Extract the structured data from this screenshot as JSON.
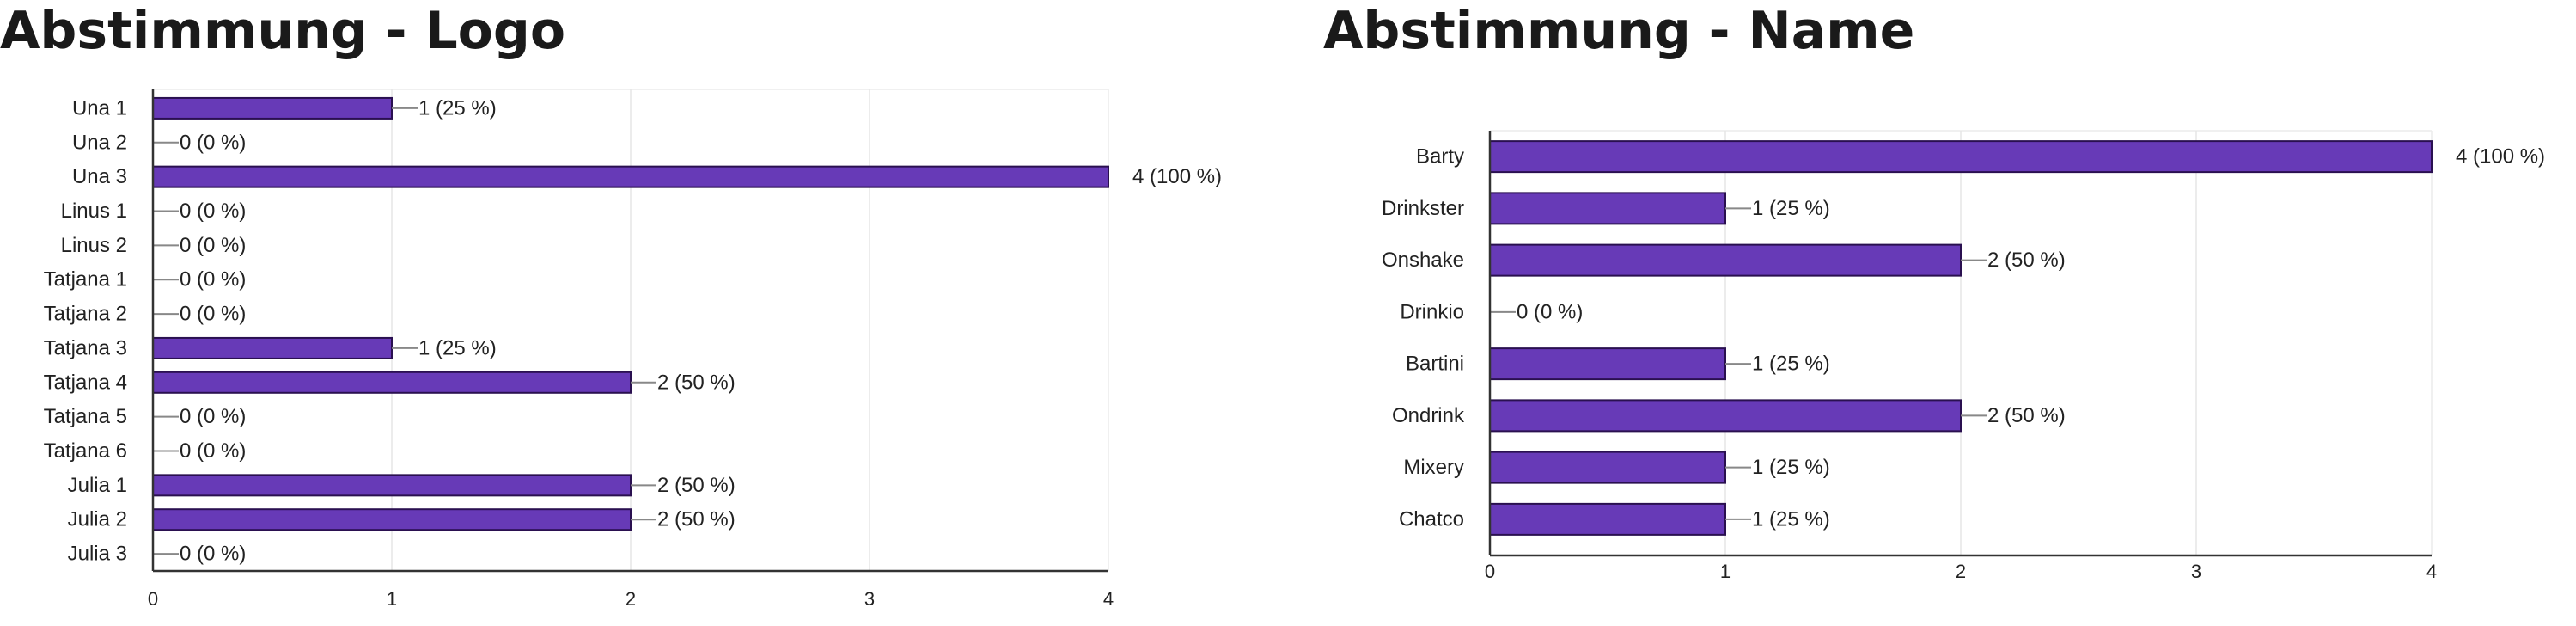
{
  "chart_data": [
    {
      "type": "bar",
      "orientation": "horizontal",
      "title": "Abstimmung - Logo",
      "categories": [
        "Una 1",
        "Una 2",
        "Una 3",
        "Linus 1",
        "Linus 2",
        "Tatjana 1",
        "Tatjana 2",
        "Tatjana 3",
        "Tatjana 4",
        "Tatjana 5",
        "Tatjana 6",
        "Julia 1",
        "Julia 2",
        "Julia 3"
      ],
      "values": [
        1,
        0,
        4,
        0,
        0,
        0,
        0,
        1,
        2,
        0,
        0,
        2,
        2,
        0
      ],
      "data_labels": [
        "1 (25 %)",
        "0 (0 %)",
        "4 (100 %)",
        "0 (0 %)",
        "0 (0 %)",
        "0 (0 %)",
        "0 (0 %)",
        "1 (25 %)",
        "2 (50 %)",
        "0 (0 %)",
        "0 (0 %)",
        "2 (50 %)",
        "2 (50 %)",
        "0 (0 %)"
      ],
      "xlim": [
        0,
        4
      ],
      "xticks": [
        "0",
        "1",
        "2",
        "3",
        "4"
      ],
      "grid": true,
      "bar_color": "#673ab7"
    },
    {
      "type": "bar",
      "orientation": "horizontal",
      "title": "Abstimmung - Name",
      "categories": [
        "Barty",
        "Drinkster",
        "Onshake",
        "Drinkio",
        "Bartini",
        "Ondrink",
        "Mixery",
        "Chatco"
      ],
      "values": [
        4,
        1,
        2,
        0,
        1,
        2,
        1,
        1
      ],
      "data_labels": [
        "4 (100 %)",
        "1 (25 %)",
        "2 (50 %)",
        "0 (0 %)",
        "1 (25 %)",
        "2 (50 %)",
        "1 (25 %)",
        "1 (25 %)"
      ],
      "xlim": [
        0,
        4
      ],
      "xticks": [
        "0",
        "1",
        "2",
        "3",
        "4"
      ],
      "grid": true,
      "bar_color": "#673ab7"
    }
  ]
}
